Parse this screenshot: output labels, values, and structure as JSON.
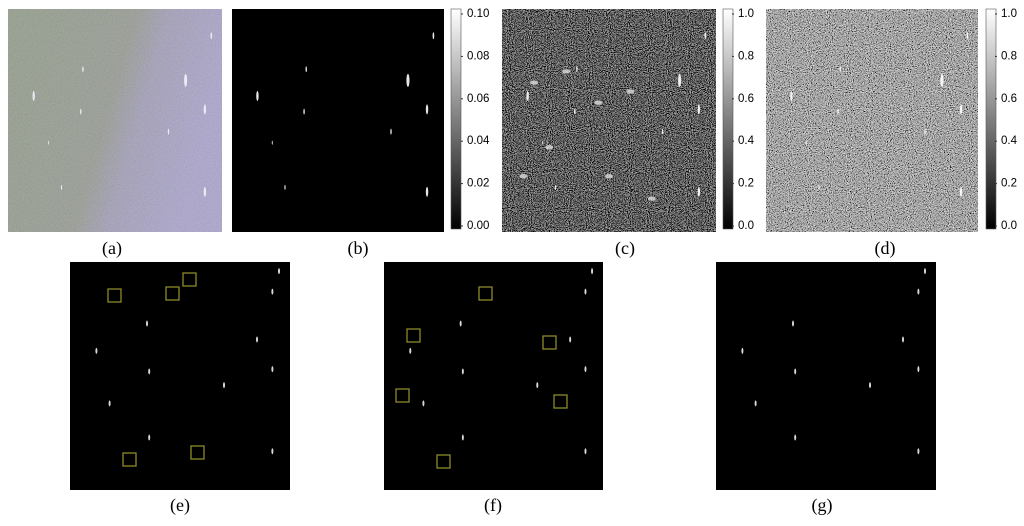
{
  "panels": [
    {
      "label": "(a)"
    },
    {
      "label": "(b)",
      "colorbar": [
        "0.10",
        "0.08",
        "0.06",
        "0.04",
        "0.02",
        "0.00"
      ]
    },
    {
      "label": "(c)",
      "colorbar": [
        "1.0",
        "0.8",
        "0.6",
        "0.4",
        "0.2",
        "0.0"
      ]
    },
    {
      "label": "(d)",
      "colorbar": [
        "1.0",
        "0.8",
        "0.6",
        "0.4",
        "0.2",
        "0.0"
      ]
    },
    {
      "label": "(e)"
    },
    {
      "label": "(f)"
    },
    {
      "label": "(g)"
    }
  ]
}
